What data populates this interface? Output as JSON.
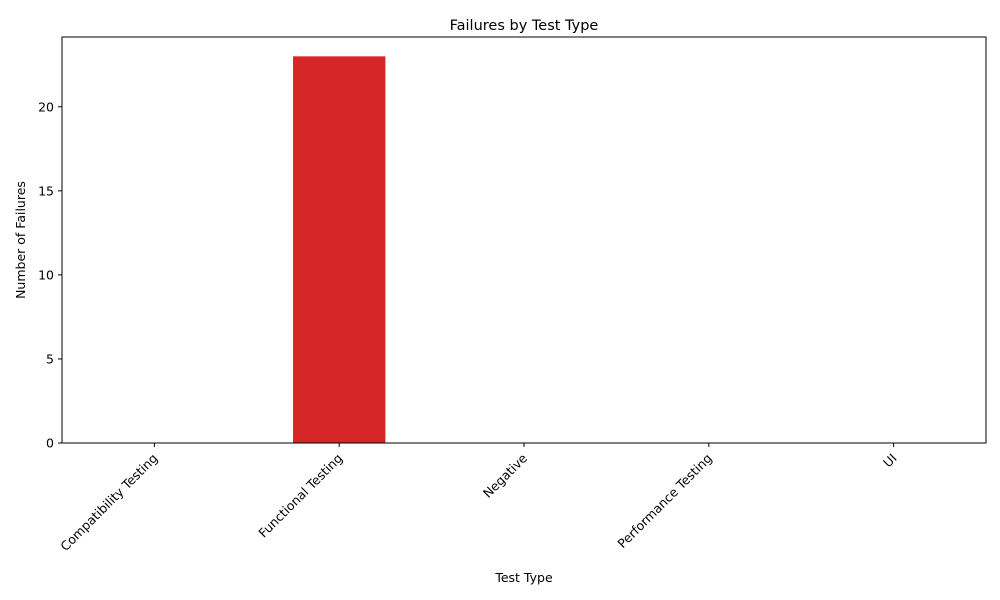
{
  "chart_data": {
    "type": "bar",
    "title": "Failures by Test Type",
    "xlabel": "Test Type",
    "ylabel": "Number of Failures",
    "categories": [
      "Compatibility Testing",
      "Functional Testing",
      "Negative",
      "Performance Testing",
      "UI"
    ],
    "values": [
      0,
      23,
      0,
      0,
      0
    ],
    "ylim": [
      0,
      24.15
    ],
    "yticks": [
      0,
      5,
      10,
      15,
      20
    ],
    "bar_color": "#d62728",
    "grid": false,
    "legend": "none"
  }
}
